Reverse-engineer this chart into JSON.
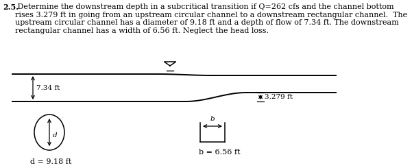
{
  "bg_color": "#ffffff",
  "line_color": "#000000",
  "text_color": "#000000",
  "title_bold": "2.5.",
  "title_rest": " Determine the downstream depth in a subcritical transition if Q=262 cfs and the channel bottom\nrises 3.279 ft in going from an upstream circular channel to a downstream rectangular channel.  The\nupstream circular channel has a diameter of 9.18 ft and a depth of flow of 7.34 ft. The downstream\nrectangular channel has a width of 6.56 ft. Neglect the head loss.",
  "upstream_depth_label": "7.34 ft",
  "downstream_rise_label": "3.279 ft",
  "circle_label": "d",
  "circle_dim_label": "d = 9.18 ft",
  "rect_label": "b",
  "rect_dim_label": "b = 6.56 ft",
  "font_size_text": 8.0,
  "font_size_labels": 7.5,
  "font_size_dim": 8.0
}
